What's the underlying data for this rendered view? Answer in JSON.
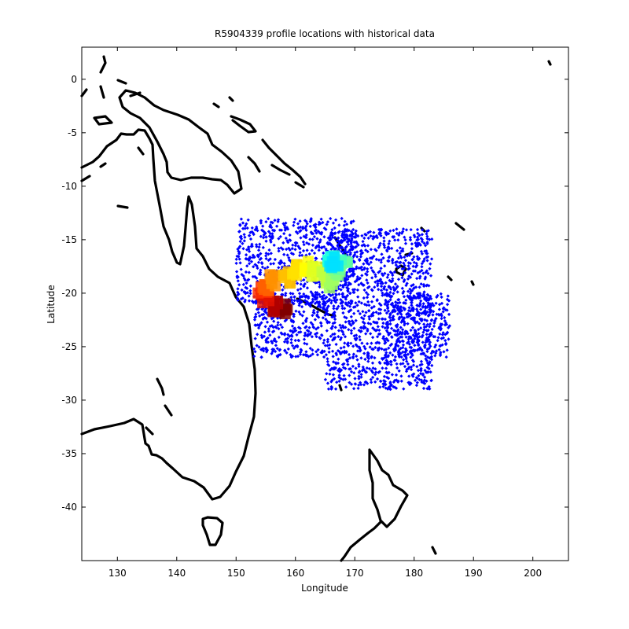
{
  "chart_data": {
    "type": "scatter",
    "title": "R5904339 profile locations with historical data",
    "xlabel": "Longitude",
    "ylabel": "Latitude",
    "xlim": [
      124,
      206
    ],
    "ylim": [
      -45,
      3
    ],
    "xticks": [
      130,
      140,
      150,
      160,
      170,
      180,
      190,
      200
    ],
    "yticks": [
      0,
      -5,
      -10,
      -15,
      -20,
      -25,
      -30,
      -35,
      -40
    ],
    "grid": false,
    "historical_color": "#0000ff",
    "coastline_color": "#000000",
    "historical_regions": [
      {
        "lon_min": 150,
        "lon_max": 170,
        "lat_min": -21,
        "lat_max": -13
      },
      {
        "lon_min": 153,
        "lon_max": 165,
        "lat_min": -26,
        "lat_max": -20
      },
      {
        "lon_min": 165,
        "lon_max": 183,
        "lat_min": -29,
        "lat_max": -14
      },
      {
        "lon_min": 175,
        "lon_max": 186,
        "lat_min": -26,
        "lat_max": -20
      }
    ],
    "profile_track": [
      {
        "lon": 158.0,
        "lat": -21.5,
        "color": "#800000"
      },
      {
        "lon": 157.0,
        "lat": -21.3,
        "color": "#b00000"
      },
      {
        "lon": 155.0,
        "lat": -20.5,
        "color": "#e01000"
      },
      {
        "lon": 154.5,
        "lat": -19.8,
        "color": "#ff3000"
      },
      {
        "lon": 155.0,
        "lat": -19.2,
        "color": "#ff6000"
      },
      {
        "lon": 156.5,
        "lat": -18.8,
        "color": "#ff9000"
      },
      {
        "lon": 158.5,
        "lat": -18.5,
        "color": "#ffc000"
      },
      {
        "lon": 160.0,
        "lat": -17.8,
        "color": "#ffe000"
      },
      {
        "lon": 161.5,
        "lat": -17.5,
        "color": "#ffff00"
      },
      {
        "lon": 163.5,
        "lat": -18.0,
        "color": "#e0ff20"
      },
      {
        "lon": 165.0,
        "lat": -18.5,
        "color": "#c0ff40"
      },
      {
        "lon": 166.0,
        "lat": -19.0,
        "color": "#a0ff60"
      },
      {
        "lon": 167.0,
        "lat": -18.0,
        "color": "#80ff80"
      },
      {
        "lon": 168.0,
        "lat": -17.5,
        "color": "#60ffa0"
      },
      {
        "lon": 167.0,
        "lat": -17.0,
        "color": "#40ffc0"
      },
      {
        "lon": 166.0,
        "lat": -16.5,
        "color": "#20ffe0"
      },
      {
        "lon": 166.5,
        "lat": -17.2,
        "color": "#00e0ff"
      }
    ]
  }
}
